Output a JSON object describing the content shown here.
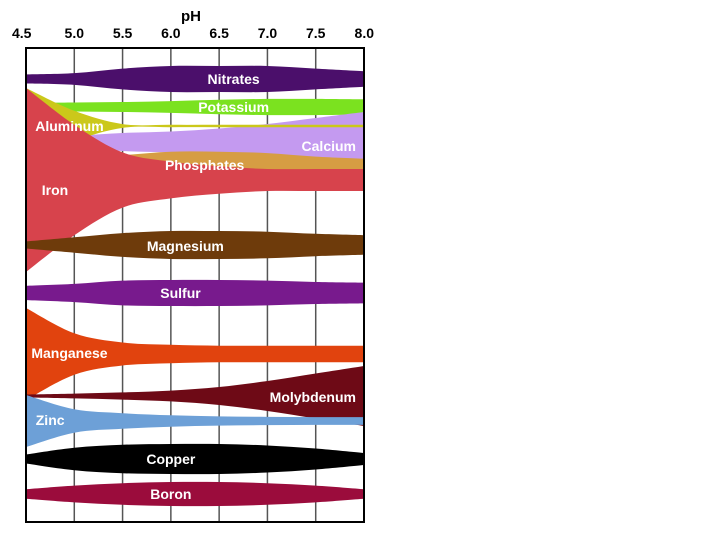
{
  "chart_data": {
    "type": "area",
    "title": "",
    "xlabel": "pH",
    "ylabel": "",
    "xlim": [
      4.5,
      8.0
    ],
    "x_ticks": [
      "4.5",
      "5.0",
      "5.5",
      "6.0",
      "6.5",
      "7.0",
      "7.5",
      "8.0"
    ],
    "grid": true,
    "legend": "none",
    "series": [
      {
        "name": "Nitrates",
        "color": "#4b0f6b",
        "label_color": "#ffffff",
        "label_x": 6.65,
        "x": [
          4.5,
          5.0,
          5.5,
          6.0,
          6.5,
          7.0,
          7.5,
          8.0
        ],
        "values": [
          0.35,
          0.45,
          0.8,
          1.0,
          1.0,
          1.0,
          0.8,
          0.6
        ]
      },
      {
        "name": "Potassium",
        "color": "#7be21f",
        "label_color": "#ffffff",
        "label_x": 6.65,
        "x": [
          4.5,
          5.0,
          5.5,
          6.0,
          6.5,
          7.0,
          7.5,
          8.0
        ],
        "values": [
          0.45,
          0.5,
          0.55,
          0.65,
          0.8,
          0.9,
          0.9,
          0.85
        ]
      },
      {
        "name": "Calcium",
        "color": "#c49af0",
        "label_color": "#ffffff",
        "label_x": 7.6,
        "x": [
          4.5,
          5.0,
          5.5,
          6.0,
          6.5,
          7.0,
          7.5,
          8.0
        ],
        "values": [
          0.1,
          0.2,
          0.3,
          0.35,
          0.45,
          0.6,
          0.8,
          1.0
        ]
      },
      {
        "name": "Aluminum",
        "color": "#cbc81a",
        "label_color": "#ffffff",
        "label_x": 4.95,
        "x": [
          4.5,
          5.0,
          5.5,
          6.0,
          6.5,
          7.0,
          7.5,
          8.0
        ],
        "values": [
          1.0,
          0.4,
          0.05,
          0.0,
          0.0,
          0.0,
          0.0,
          0.0
        ]
      },
      {
        "name": "Phosphates",
        "color": "#d69d43",
        "label_color": "#ffffff",
        "label_x": 6.35,
        "x": [
          4.5,
          5.0,
          5.5,
          6.0,
          6.5,
          7.0,
          7.5,
          8.0
        ],
        "values": [
          0.15,
          0.45,
          0.7,
          0.95,
          0.95,
          0.85,
          0.6,
          0.45
        ]
      },
      {
        "name": "Iron",
        "color": "#d7434c",
        "label_color": "#ffffff",
        "label_x": 4.8,
        "x": [
          4.5,
          5.0,
          5.5,
          6.0,
          6.5,
          7.0,
          7.5,
          8.0
        ],
        "values": [
          1.0,
          0.6,
          0.3,
          0.2,
          0.15,
          0.12,
          0.12,
          0.12
        ]
      },
      {
        "name": "Magnesium",
        "color": "#6e3b0b",
        "label_color": "#ffffff",
        "label_x": 6.15,
        "x": [
          4.5,
          5.0,
          5.5,
          6.0,
          6.5,
          7.0,
          7.5,
          8.0
        ],
        "values": [
          0.25,
          0.55,
          0.85,
          1.0,
          1.0,
          0.95,
          0.8,
          0.7
        ]
      },
      {
        "name": "Sulfur",
        "color": "#781a8d",
        "label_color": "#ffffff",
        "label_x": 6.1,
        "x": [
          4.5,
          5.0,
          5.5,
          6.0,
          6.5,
          7.0,
          7.5,
          8.0
        ],
        "values": [
          0.55,
          0.7,
          0.95,
          1.0,
          1.0,
          0.95,
          0.85,
          0.8
        ]
      },
      {
        "name": "Manganese",
        "color": "#e1430e",
        "label_color": "#ffffff",
        "label_x": 4.95,
        "x": [
          4.5,
          5.0,
          5.5,
          6.0,
          6.5,
          7.0,
          7.5,
          8.0
        ],
        "values": [
          1.0,
          0.45,
          0.25,
          0.2,
          0.18,
          0.18,
          0.18,
          0.18
        ]
      },
      {
        "name": "Molybdenum",
        "color": "#6e0a16",
        "label_color": "#ffffff",
        "label_x": 7.6,
        "x": [
          4.5,
          5.0,
          5.5,
          6.0,
          6.5,
          7.0,
          7.5,
          8.0
        ],
        "values": [
          0.05,
          0.08,
          0.12,
          0.18,
          0.3,
          0.5,
          0.75,
          1.0
        ]
      },
      {
        "name": "Zinc",
        "color": "#6da0d7",
        "label_color": "#ffffff",
        "label_x": 4.75,
        "x": [
          4.5,
          5.0,
          5.5,
          6.0,
          6.5,
          7.0,
          7.5,
          8.0
        ],
        "values": [
          1.0,
          0.45,
          0.3,
          0.22,
          0.18,
          0.16,
          0.15,
          0.15
        ]
      },
      {
        "name": "Copper",
        "color": "#000000",
        "label_color": "#ffffff",
        "label_x": 6.0,
        "x": [
          4.5,
          5.0,
          5.5,
          6.0,
          6.5,
          7.0,
          7.5,
          8.0
        ],
        "values": [
          0.3,
          0.75,
          0.95,
          1.0,
          1.0,
          0.9,
          0.7,
          0.4
        ]
      },
      {
        "name": "Boron",
        "color": "#9b0c3c",
        "label_color": "#ffffff",
        "label_x": 6.0,
        "x": [
          4.5,
          5.0,
          5.5,
          6.0,
          6.5,
          7.0,
          7.5,
          8.0
        ],
        "values": [
          0.4,
          0.7,
          0.9,
          1.0,
          1.0,
          0.9,
          0.7,
          0.4
        ]
      }
    ]
  }
}
